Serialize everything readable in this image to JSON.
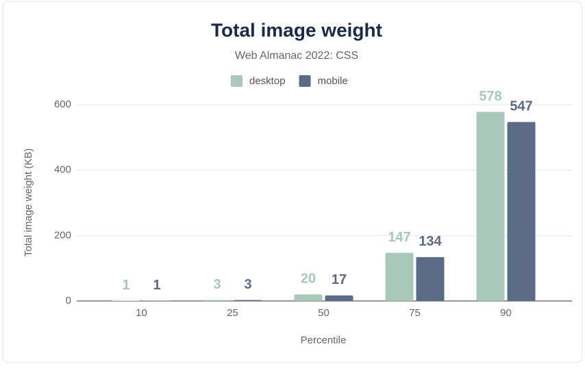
{
  "chart_data": {
    "type": "bar",
    "title": "Total image weight",
    "subtitle": "Web Almanac 2022: CSS",
    "x_label": "Percentile",
    "y_label": "Total image weight (KB)",
    "categories": [
      "10",
      "25",
      "50",
      "75",
      "90"
    ],
    "series": [
      {
        "name": "desktop",
        "color": "#a8c8b8",
        "values": [
          1,
          3,
          20,
          147,
          578
        ]
      },
      {
        "name": "mobile",
        "color": "#5b6a85",
        "values": [
          1,
          3,
          17,
          134,
          547
        ]
      }
    ],
    "ylim": [
      0,
      600
    ],
    "yticks": [
      0,
      200,
      400,
      600
    ],
    "grid": true,
    "legend": "top"
  }
}
